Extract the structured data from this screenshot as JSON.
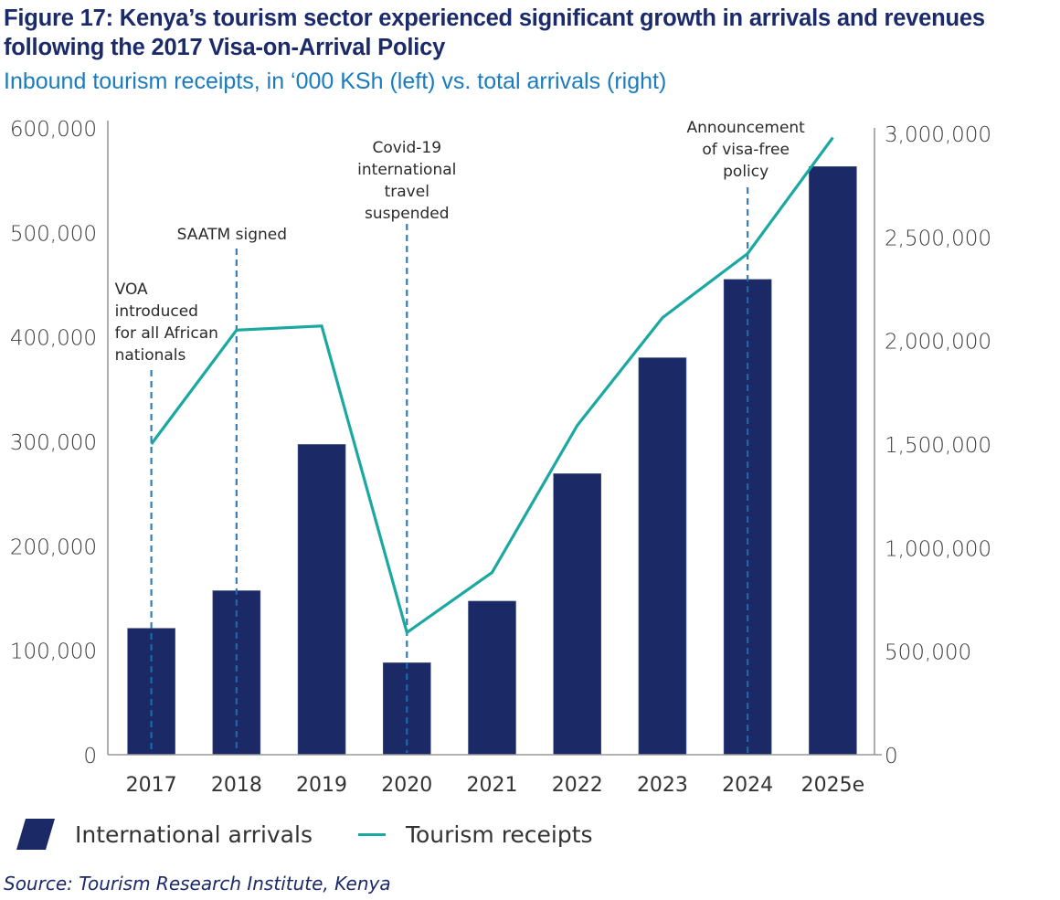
{
  "header": {
    "title": "Figure 17: Kenya’s tourism sector experienced significant growth in arrivals and revenues following the 2017 Visa-on-Arrival Policy",
    "subtitle": "Inbound tourism receipts, in ‘000 KSh (left) vs. total arrivals (right)"
  },
  "colors": {
    "title": "#1b2a6b",
    "subtitle": "#1a7bbf",
    "bars": "#1b2966",
    "line": "#1aa8a0",
    "annotation_line": "#1f6fb0",
    "axis": "#9a9a9a"
  },
  "chart_data": {
    "type": "bar+line",
    "title": "Figure 17: Kenya’s tourism sector experienced significant growth in arrivals and revenues following the 2017 Visa-on-Arrival Policy",
    "subtitle": "Inbound tourism receipts, in ‘000 KSh (left) vs. total arrivals (right)",
    "categories": [
      "2017",
      "2018",
      "2019",
      "2020",
      "2021",
      "2022",
      "2023",
      "2024",
      "2025e"
    ],
    "left_axis": {
      "range": [
        0,
        600000
      ],
      "ticks": [
        0,
        100000,
        200000,
        300000,
        400000,
        500000,
        600000
      ],
      "tick_labels": [
        "0",
        "100,000",
        "200,000",
        "300,000",
        "400,000",
        "500,000",
        "600,000"
      ]
    },
    "right_axis": {
      "range": [
        0,
        3000000
      ],
      "ticks": [
        0,
        500000,
        1000000,
        1500000,
        2000000,
        2500000,
        3000000
      ],
      "tick_labels": [
        "0",
        "500,000",
        "1,000,000",
        "1,500,000",
        "2,000,000",
        "2,500,000",
        "3,000,000"
      ]
    },
    "series": [
      {
        "name": "International arrivals",
        "type": "bar",
        "axis": "left",
        "values": [
          121000,
          157000,
          297000,
          88000,
          147000,
          269000,
          380000,
          455000,
          563000
        ]
      },
      {
        "name": "Tourism receipts",
        "type": "line",
        "axis": "right",
        "values": [
          1500000,
          2050000,
          2070000,
          590000,
          880000,
          1590000,
          2110000,
          2420000,
          2980000
        ]
      }
    ],
    "annotations": [
      {
        "category": "2017",
        "lines": [
          "VOA",
          "introduced",
          "for all African",
          "nationals"
        ]
      },
      {
        "category": "2018",
        "lines": [
          "SAATM signed"
        ]
      },
      {
        "category": "2020",
        "lines": [
          "Covid-19",
          "international",
          "travel",
          "suspended"
        ]
      },
      {
        "category": "2024",
        "lines": [
          "Announcement",
          "of visa-free",
          "policy"
        ]
      }
    ],
    "legend": {
      "position": "bottom-left",
      "items": [
        "International arrivals",
        "Tourism receipts"
      ]
    },
    "grid": false
  },
  "legend": {
    "bars_label": "International arrivals",
    "line_label": "Tourism receipts"
  },
  "footer": {
    "source": "Source: Tourism Research Institute, Kenya"
  }
}
